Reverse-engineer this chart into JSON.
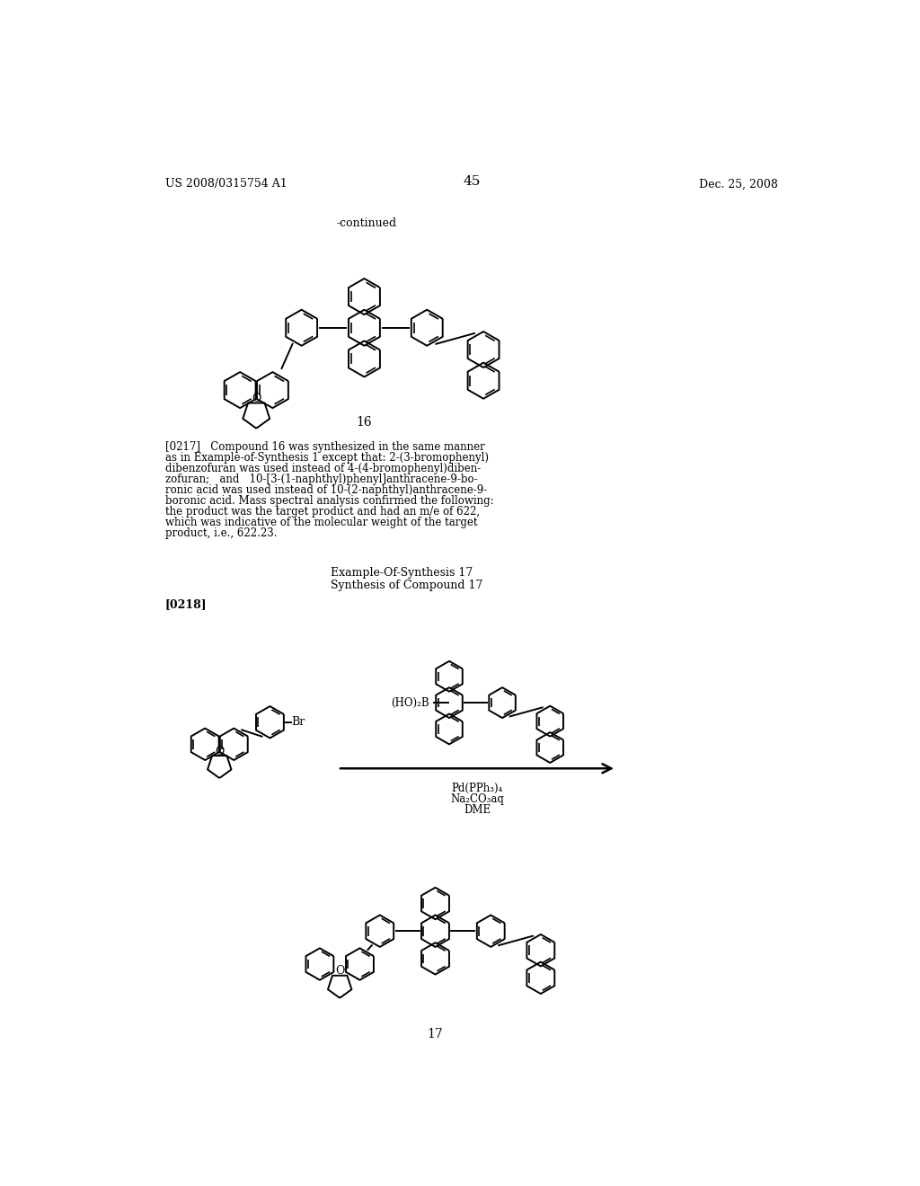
{
  "page_header_left": "US 2008/0315754 A1",
  "page_header_right": "Dec. 25, 2008",
  "page_number": "45",
  "continued_label": "-continued",
  "compound16_label": "16",
  "compound17_label": "17",
  "example_synthesis_17": "Example-Of-Synthesis 17",
  "synthesis_compound_17": "Synthesis of Compound 17",
  "paragraph_0218_bold": "[0218]",
  "reaction_label1": "Pd(PPh₃)₄",
  "reaction_label2": "Na₂CO₃aq",
  "reaction_label3": "DME",
  "reactant_label": "(HO)₂B",
  "br_label": "Br",
  "background_color": "#ffffff",
  "text_color": "#000000",
  "line_color": "#000000",
  "para_0217_line1": "[0217]   Compound 16 was synthesized in the same manner",
  "para_0217_line2": "as in Example-of-Synthesis 1 except that: 2-(3-bromophenyl)",
  "para_0217_line3": "dibenzofuran was used instead of 4-(4-bromophenyl)diben-",
  "para_0217_line4": "zofuran;   and   10-[3-(1-naphthyl)phenyl]anthracene-9-bo-",
  "para_0217_line5": "ronic acid was used instead of 10-(2-naphthyl)anthracene-9-",
  "para_0217_line6": "boronic acid. Mass spectral analysis confirmed the following:",
  "para_0217_line7": "the product was the target product and had an m/e of 622,",
  "para_0217_line8": "which was indicative of the molecular weight of the target",
  "para_0217_line9": "product, i.e., 622.23."
}
